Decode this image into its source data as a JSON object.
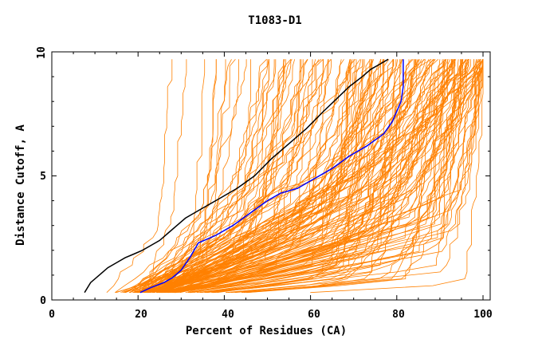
{
  "chart_data": {
    "type": "line",
    "title": "T1083-D1",
    "xlabel": "Percent of Residues (CA)",
    "ylabel": "Distance Cutoff, A",
    "xlim": [
      0,
      100
    ],
    "ylim": [
      0,
      10
    ],
    "x_ticks": [
      "0",
      "20",
      "40",
      "60",
      "80",
      "100"
    ],
    "y_ticks": [
      "0",
      "5",
      "10"
    ],
    "grid": false,
    "colors": {
      "background_models": "#ff8000",
      "black_series": "#000000",
      "blue_series": "#0000ff",
      "axes": "#000000"
    },
    "series": [
      {
        "name": "highlight-black",
        "color": "#000000",
        "x": [
          7.6,
          9,
          11,
          13,
          15,
          17,
          19,
          21,
          23,
          25,
          27,
          29,
          31,
          35,
          39,
          43,
          47,
          51,
          55,
          59,
          63,
          66,
          69,
          72,
          74,
          76,
          78
        ],
        "y": [
          0.3,
          0.7,
          1.0,
          1.3,
          1.5,
          1.7,
          1.85,
          2.0,
          2.2,
          2.4,
          2.7,
          3.0,
          3.3,
          3.7,
          4.1,
          4.5,
          5.0,
          5.7,
          6.3,
          6.9,
          7.6,
          8.1,
          8.6,
          9.0,
          9.3,
          9.5,
          9.7
        ]
      },
      {
        "name": "highlight-blue",
        "color": "#0000ff",
        "x": [
          20.5,
          23,
          26,
          28,
          30,
          32,
          34,
          38,
          42,
          46,
          50,
          53,
          57,
          61,
          65,
          69,
          73,
          77,
          79,
          80,
          81,
          81.5,
          81.5,
          81.5
        ],
        "y": [
          0.3,
          0.5,
          0.7,
          0.9,
          1.2,
          1.7,
          2.3,
          2.6,
          3.0,
          3.5,
          4.0,
          4.3,
          4.5,
          4.9,
          5.3,
          5.8,
          6.2,
          6.7,
          7.2,
          7.6,
          8.0,
          8.6,
          9.2,
          9.7
        ]
      }
    ]
  }
}
